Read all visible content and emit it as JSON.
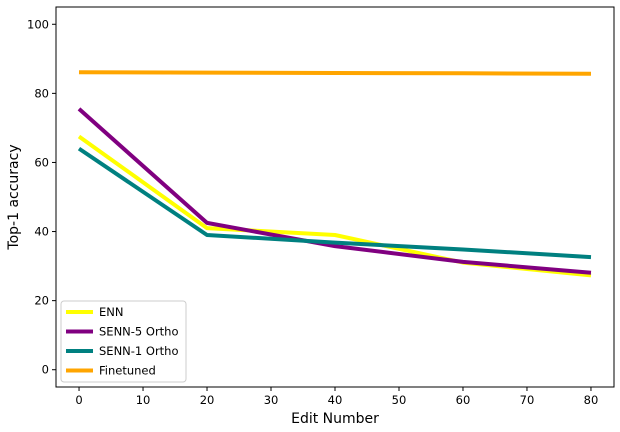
{
  "chart_data": {
    "type": "line",
    "title": "",
    "xlabel": "Edit Number",
    "ylabel": "Top-1 accuracy",
    "xlim": [
      -3.6,
      83.6
    ],
    "ylim": [
      -5,
      105
    ],
    "xticks": [
      0,
      10,
      20,
      30,
      40,
      50,
      60,
      70,
      80
    ],
    "yticks": [
      0,
      20,
      40,
      60,
      80,
      100
    ],
    "grid": false,
    "legend_position": "lower-left",
    "series": [
      {
        "name": "ENN",
        "color": "#ffff00",
        "x": [
          0,
          20,
          40,
          60,
          80
        ],
        "y": [
          67.5,
          41,
          39,
          31,
          27.3
        ]
      },
      {
        "name": "SENN-5 Ortho",
        "color": "#800080",
        "x": [
          0,
          20,
          40,
          60,
          80
        ],
        "y": [
          75.5,
          42.5,
          35.8,
          31.2,
          28.1
        ]
      },
      {
        "name": "SENN-1 Ortho",
        "color": "#008080",
        "x": [
          0,
          20,
          40,
          60,
          80
        ],
        "y": [
          64,
          39,
          36.8,
          34.8,
          32.6
        ]
      },
      {
        "name": "Finetuned",
        "color": "#ffa500",
        "x": [
          0,
          20,
          40,
          60,
          80
        ],
        "y": [
          86.1,
          86.0,
          85.9,
          85.8,
          85.7
        ]
      }
    ]
  }
}
